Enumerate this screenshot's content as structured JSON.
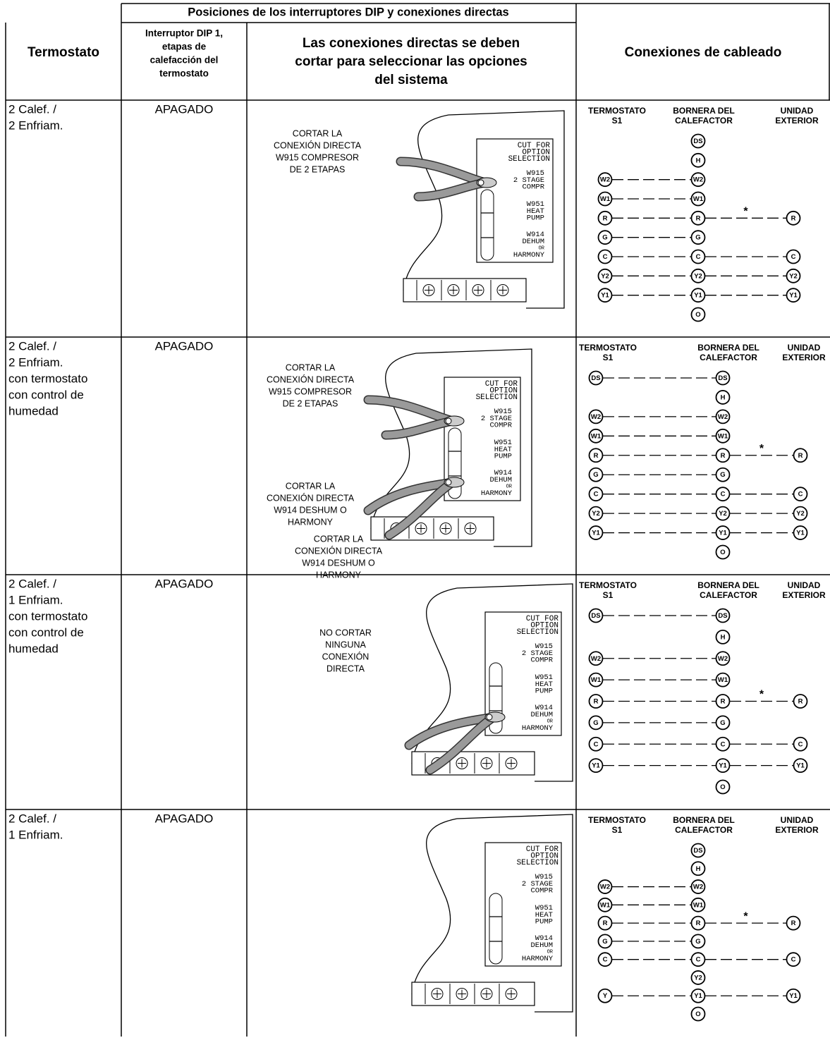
{
  "header": {
    "group": "Posiciones de los interruptores DIP y conexiones directas",
    "col_thermostat": "Termostato",
    "col_dip": [
      "Interruptor DIP 1,",
      "etapas de",
      "calefacción del",
      "termostato"
    ],
    "col_jumpers": [
      "Las conexiones directas se deben",
      "cortar para seleccionar las opciones",
      "del sistema"
    ],
    "col_wiring": "Conexiones de cableado"
  },
  "board": {
    "title": [
      "CUT FOR",
      "OPTION",
      "SELECTION"
    ],
    "options": [
      {
        "code": "W915",
        "label": [
          "2 STAGE",
          "COMPR"
        ]
      },
      {
        "code": "W951",
        "label": [
          "HEAT",
          "PUMP"
        ]
      },
      {
        "code": "W914",
        "label": [
          "DEHUM",
          "OR",
          "HARMONY"
        ]
      }
    ]
  },
  "wiring_header": {
    "thermostat": [
      "TERMOSTATO",
      "S1"
    ],
    "furnace": [
      "BORNERA DEL",
      "CALEFACTOR"
    ],
    "outdoor": [
      "UNIDAD",
      "EXTERIOR"
    ]
  },
  "rows": [
    {
      "thermostat": [
        "2 Calef. /",
        "2 Enfriam."
      ],
      "dip": "APAGADO",
      "cut_notes": [
        [
          "CORTAR LA",
          "CONEXIÓN DIRECTA",
          "W915 COMPRESOR",
          "DE 2 ETAPAS"
        ]
      ],
      "wiring": [
        {
          "furnace": "DS"
        },
        {
          "furnace": "H"
        },
        {
          "thermostat": "W2",
          "furnace": "W2"
        },
        {
          "thermostat": "W1",
          "furnace": "W1"
        },
        {
          "thermostat": "R",
          "furnace": "R",
          "note": "*",
          "outdoor": "R"
        },
        {
          "thermostat": "G",
          "furnace": "G"
        },
        {
          "thermostat": "C",
          "furnace": "C",
          "outdoor": "C"
        },
        {
          "thermostat": "Y2",
          "furnace": "Y2",
          "outdoor": "Y2"
        },
        {
          "thermostat": "Y1",
          "furnace": "Y1",
          "outdoor": "Y1"
        },
        {
          "furnace": "O"
        }
      ]
    },
    {
      "thermostat": [
        "2 Calef. /",
        "2 Enfriam.",
        "con termostato",
        "con control de",
        "humedad"
      ],
      "dip": "APAGADO",
      "cut_notes": [
        [
          "CORTAR LA",
          "CONEXIÓN DIRECTA",
          "W915 COMPRESOR",
          "DE 2 ETAPAS"
        ],
        [
          "CORTAR LA",
          "CONEXIÓN DIRECTA",
          "W914 DESHUM O",
          "HARMONY"
        ]
      ],
      "wiring": [
        {
          "thermostat": "DS",
          "furnace": "DS"
        },
        {
          "furnace": "H"
        },
        {
          "thermostat": "W2",
          "furnace": "W2"
        },
        {
          "thermostat": "W1",
          "furnace": "W1"
        },
        {
          "thermostat": "R",
          "furnace": "R",
          "note": "*",
          "outdoor": "R"
        },
        {
          "thermostat": "G",
          "furnace": "G"
        },
        {
          "thermostat": "C",
          "furnace": "C",
          "outdoor": "C"
        },
        {
          "thermostat": "Y2",
          "furnace": "Y2",
          "outdoor": "Y2"
        },
        {
          "thermostat": "Y1",
          "furnace": "Y1",
          "outdoor": "Y1"
        },
        {
          "furnace": "O"
        }
      ]
    },
    {
      "thermostat": [
        "2 Calef. /",
        "1 Enfriam.",
        "con termostato",
        "con control de",
        "humedad"
      ],
      "dip": "APAGADO",
      "cut_notes": [
        [
          "CORTAR LA",
          "CONEXIÓN DIRECTA",
          "W914 DESHUM O",
          "HARMONY"
        ]
      ],
      "wiring": [
        {
          "thermostat": "DS",
          "furnace": "DS"
        },
        {
          "furnace": "H"
        },
        {
          "thermostat": "W2",
          "furnace": "W2"
        },
        {
          "thermostat": "W1",
          "furnace": "W1"
        },
        {
          "thermostat": "R",
          "furnace": "R",
          "note": "*",
          "outdoor": "R"
        },
        {
          "thermostat": "G",
          "furnace": "G"
        },
        {
          "thermostat": "C",
          "furnace": "C",
          "outdoor": "C"
        },
        {
          "thermostat": "Y1",
          "furnace": "Y1",
          "outdoor": "Y1"
        },
        {
          "furnace": "O"
        }
      ]
    },
    {
      "thermostat": [
        "2 Calef. /",
        "1 Enfriam."
      ],
      "dip": "APAGADO",
      "cut_notes": [
        [
          "NO CORTAR",
          "NINGUNA",
          "CONEXIÓN",
          "DIRECTA"
        ]
      ],
      "wiring": [
        {
          "furnace": "DS"
        },
        {
          "furnace": "H"
        },
        {
          "thermostat": "W2",
          "furnace": "W2"
        },
        {
          "thermostat": "W1",
          "furnace": "W1"
        },
        {
          "thermostat": "R",
          "furnace": "R",
          "note": "*",
          "outdoor": "R"
        },
        {
          "thermostat": "G",
          "furnace": "G"
        },
        {
          "thermostat": "C",
          "furnace": "C",
          "outdoor": "C"
        },
        {
          "furnace": "Y2"
        },
        {
          "thermostat": "Y",
          "furnace": "Y1",
          "outdoor": "Y1"
        },
        {
          "furnace": "O"
        }
      ]
    }
  ]
}
